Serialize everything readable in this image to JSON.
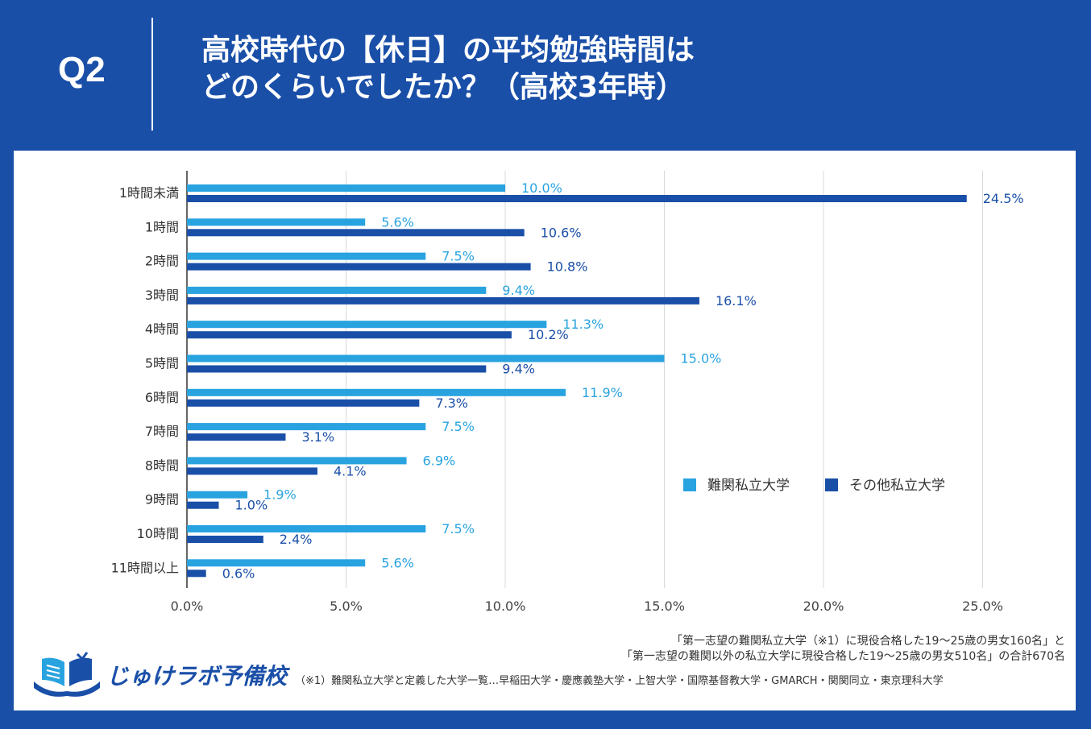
{
  "header": {
    "question_label": "Q2",
    "title_line1": "高校時代の【休日】の平均勉強時間は",
    "title_line2": "どのくらいでしたか？（高校3年時）"
  },
  "colors": {
    "background": "#1a4fa8",
    "series_light": "#29a3e0",
    "series_dark": "#1a4fa8"
  },
  "chart_data": {
    "type": "bar",
    "orientation": "horizontal",
    "categories": [
      "1時間未満",
      "1時間",
      "2時間",
      "3時間",
      "4時間",
      "5時間",
      "6時間",
      "7時間",
      "8時間",
      "9時間",
      "10時間",
      "11時間以上"
    ],
    "series": [
      {
        "name": "難関私立大学",
        "values": [
          10.0,
          5.6,
          7.5,
          9.4,
          11.3,
          15.0,
          11.9,
          7.5,
          6.9,
          1.9,
          7.5,
          5.6
        ],
        "labels": [
          "10.0%",
          "5.6%",
          "7.5%",
          "9.4%",
          "11.3%",
          "15.0%",
          "11.9%",
          "7.5%",
          "6.9%",
          "1.9%",
          "7.5%",
          "5.6%"
        ]
      },
      {
        "name": "その他私立大学",
        "values": [
          24.5,
          10.6,
          10.8,
          16.1,
          10.2,
          9.4,
          7.3,
          3.1,
          4.1,
          1.0,
          2.4,
          0.6
        ],
        "labels": [
          "24.5%",
          "10.6%",
          "10.8%",
          "16.1%",
          "10.2%",
          "9.4%",
          "7.3%",
          "3.1%",
          "4.1%",
          "1.0%",
          "2.4%",
          "0.6%"
        ]
      }
    ],
    "xlim": [
      0,
      25
    ],
    "xticks": [
      "0.0%",
      "5.0%",
      "10.0%",
      "15.0%",
      "20.0%",
      "25.0%"
    ],
    "grid": true,
    "legend": "right-middle"
  },
  "notes": {
    "line1": "「第一志望の難関私立大学（※1）に現役合格した19～25歳の男女160名」と",
    "line2": "「第一志望の難関以外の私立大学に現役合格した19～25歳の男女510名」の合計670名",
    "footnote": "（※1）難関私立大学と定義した大学一覧…早稲田大学・慶應義塾大学・上智大学・国際基督教大学・GMARCH・関関同立・東京理科大学"
  },
  "logo": {
    "text": "じゅけラボ予備校",
    "icon": "open-book-icon"
  }
}
